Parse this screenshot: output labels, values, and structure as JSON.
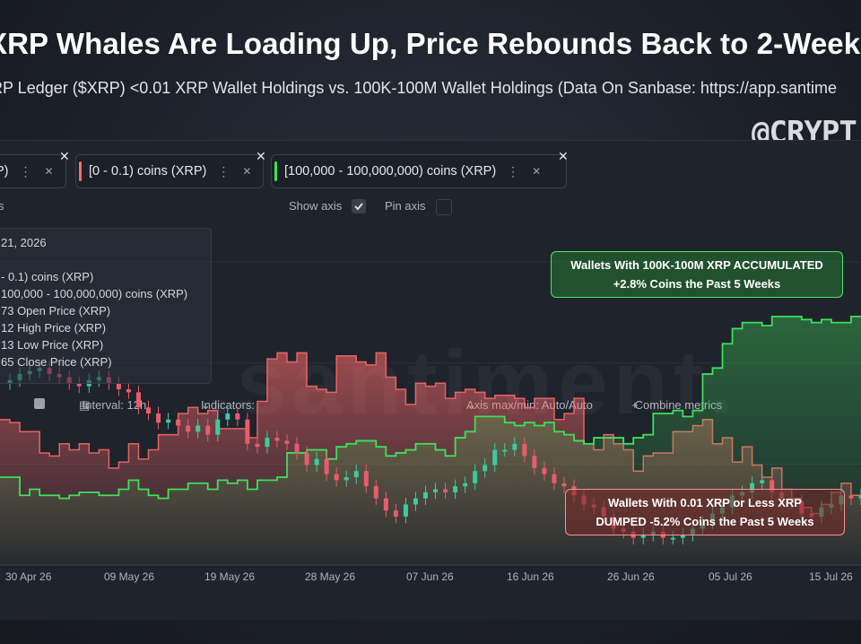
{
  "header": {
    "headline": "XRP Whales Are Loading Up, Price Rebounds Back to 2-Week H",
    "subtitle": "RP Ledger ($XRP) <0.01 XRP Wallet Holdings vs. 100K-100M Wallet Holdings (Data On Sanbase: https://app.santime",
    "handle": "@CRYPT("
  },
  "metrics": [
    {
      "label": "P)",
      "color": "#3a3f4a"
    },
    {
      "label": "[0 - 0.1) coins (XRP)",
      "color": "#ff6b6b"
    },
    {
      "label": "[100,000 - 100,000,000) coins (XRP)",
      "color": "#3ee05a"
    }
  ],
  "toolbar": {
    "s": "s",
    "interval": "Interval: 12h",
    "indicators": "Indicators:",
    "show_axis": "Show axis",
    "pin_axis": "Pin axis",
    "axis_minmax": "Axis max/min: Auto/Auto",
    "combine": "Combine metrics"
  },
  "tooltip": {
    "date": "21, 2026",
    "rows": [
      "- 0.1) coins (XRP)",
      "100,000  - 100,000,000) coins (XRP)",
      "73 Open Price (XRP)",
      "12 High Price (XRP)",
      "13 Low Price (XRP)",
      "65 Close Price (XRP)"
    ]
  },
  "callouts": {
    "green_line1": "Wallets With 100K-100M XRP ACCUMULATED",
    "green_line2": "+2.8% Coins the Past 5 Weeks",
    "red_line1": "Wallets With 0.01 XRP or Less XRP",
    "red_line2": "DUMPED -5.2% Coins the Past 5 Weeks"
  },
  "watermark": ".santiment.",
  "colors": {
    "red": "#ff6b6b",
    "green": "#3ee05a",
    "candle_up": "#3ec9a0",
    "candle_down": "#e85c6c"
  },
  "chart_data": {
    "type": "line",
    "x_ticks": [
      "30 Apr 26",
      "09 May 26",
      "19 May 26",
      "28 May 26",
      "07 Jun 26",
      "16 Jun 26",
      "26 Jun 26",
      "05 Jul 26",
      "15 Jul 26"
    ],
    "series": [
      {
        "name": "[0 - 0.1) coins (XRP)",
        "style": "area",
        "values": [
          48,
          47,
          44,
          44,
          37,
          36,
          40,
          38,
          40,
          37,
          38,
          32,
          34,
          40,
          35,
          38,
          43,
          43,
          50,
          52,
          50,
          51,
          45,
          45,
          45,
          42,
          54,
          68,
          70,
          67,
          70,
          59,
          58,
          57,
          69,
          69,
          67,
          66,
          70,
          62,
          58,
          53,
          60,
          59,
          60,
          55,
          57,
          58,
          57,
          55,
          56,
          56,
          55,
          52,
          55,
          55,
          48,
          50,
          55,
          40,
          38,
          43,
          40,
          38,
          31,
          36,
          37,
          37,
          44,
          44,
          46,
          48,
          40,
          42,
          34,
          39,
          33,
          29,
          32,
          25,
          22,
          19,
          17,
          20,
          24,
          27,
          23,
          22
        ]
      },
      {
        "name": "[100,000 - 100,000,000) coins (XRP)",
        "style": "line",
        "values": [
          29,
          29,
          23,
          25,
          23,
          23,
          22,
          23,
          24,
          24,
          23,
          23,
          25,
          28,
          25,
          23,
          22,
          25,
          25,
          27,
          27,
          25,
          28,
          27,
          28,
          25,
          28,
          28,
          29,
          37,
          37,
          38,
          38,
          35,
          39,
          40,
          41,
          41,
          39,
          36,
          37,
          38,
          40,
          40,
          38,
          36,
          42,
          44,
          49,
          49,
          49,
          47,
          46,
          47,
          46,
          47,
          44,
          43,
          41,
          40,
          42,
          42,
          42,
          40,
          42,
          43,
          50,
          50,
          51,
          49,
          51,
          63,
          65,
          73,
          78,
          80,
          80,
          79,
          82,
          82,
          82,
          81,
          80,
          81,
          80,
          80,
          82,
          82
        ]
      },
      {
        "name": "Price (XRP)",
        "style": "candlestick",
        "values": [
          60,
          61,
          63,
          64,
          65,
          63,
          62,
          60,
          59,
          61,
          62,
          60,
          58,
          57,
          52,
          50,
          47,
          48,
          46,
          44,
          46,
          43,
          48,
          50,
          48,
          40,
          39,
          42,
          41,
          40,
          37,
          33,
          35,
          30,
          28,
          29,
          31,
          26,
          22,
          18,
          16,
          20,
          22,
          24,
          25,
          24,
          26,
          27,
          31,
          33,
          38,
          38,
          40,
          36,
          32,
          30,
          27,
          26,
          23,
          20,
          19,
          16,
          12,
          11,
          9,
          10,
          11,
          9,
          9,
          10,
          12,
          14,
          17,
          19,
          23,
          24,
          27,
          28,
          24,
          22,
          21,
          17,
          16,
          19,
          20,
          23,
          22,
          23
        ]
      }
    ]
  }
}
